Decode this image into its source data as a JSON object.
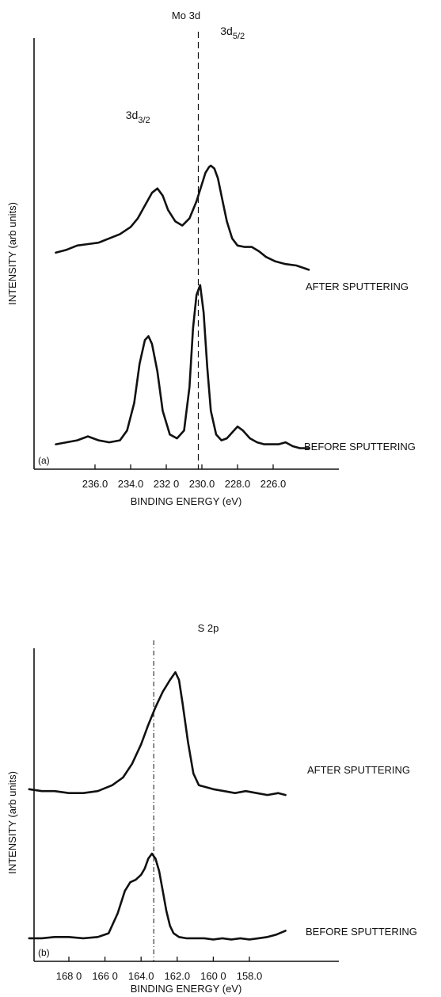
{
  "chart_data": [
    {
      "type": "line",
      "title": "Mo 3d",
      "panel_label": "(a)",
      "xlabel": "BINDING ENERGY (eV)",
      "ylabel": "INTENSITY (arb units)",
      "x_reversed": true,
      "xlim": [
        238.2,
        224.0
      ],
      "xticks": [
        236.0,
        234.0,
        232.0,
        230.0,
        228.0,
        226.0
      ],
      "xtick_labels": [
        "236.0",
        "234.0",
        "232 0",
        "230.0",
        "228.0",
        "226.0"
      ],
      "ylim": [
        0,
        100
      ],
      "reference_line_x": 230.2,
      "annotations": [
        {
          "text": "3d",
          "sub": "3/2",
          "x": 232.5
        },
        {
          "text": "3d",
          "sub": "5/2",
          "x": 229.5
        }
      ],
      "series": [
        {
          "name": "AFTER SPUTTERING",
          "x": [
            238.2,
            237.6,
            237.0,
            236.4,
            235.8,
            235.2,
            234.6,
            234.0,
            233.6,
            233.2,
            232.8,
            232.5,
            232.2,
            231.9,
            231.5,
            231.1,
            230.7,
            230.3,
            230.0,
            229.8,
            229.6,
            229.5,
            229.3,
            229.1,
            228.9,
            228.6,
            228.3,
            228.0,
            227.6,
            227.2,
            226.8,
            226.4,
            225.9,
            225.3,
            224.7,
            224.0
          ],
          "y": [
            44,
            46,
            49,
            50,
            51,
            54,
            57,
            62,
            68,
            77,
            86,
            89,
            84,
            74,
            66,
            63,
            68,
            80,
            92,
            100,
            104,
            105,
            103,
            96,
            84,
            66,
            54,
            49,
            48,
            48,
            45,
            41,
            38,
            36,
            35,
            32
          ]
        },
        {
          "name": "BEFORE SPUTTERING",
          "x": [
            238.2,
            237.6,
            237.0,
            236.4,
            235.8,
            235.2,
            234.6,
            234.2,
            233.8,
            233.5,
            233.2,
            233.0,
            232.8,
            232.5,
            232.2,
            231.8,
            231.4,
            231.0,
            230.7,
            230.5,
            230.3,
            230.1,
            229.9,
            229.7,
            229.5,
            229.2,
            228.9,
            228.6,
            228.3,
            228.0,
            227.7,
            227.3,
            226.9,
            226.5,
            226.1,
            225.7,
            225.3,
            224.9,
            224.5,
            224.0
          ],
          "y": [
            3,
            4,
            5,
            7,
            5,
            4,
            5,
            10,
            24,
            44,
            56,
            58,
            54,
            40,
            20,
            8,
            6,
            10,
            32,
            62,
            79,
            84,
            70,
            42,
            20,
            8,
            5,
            6,
            9,
            12,
            10,
            6,
            4,
            3,
            3,
            3,
            4,
            2,
            1,
            1
          ]
        }
      ],
      "series_label_text": [
        "AFTER SPUTTERING",
        "BEFORE SPUTTERING"
      ]
    },
    {
      "type": "line",
      "title": "S 2p",
      "panel_label": "(b)",
      "xlabel": "BINDING ENERGY (eV)",
      "ylabel": "INTENSITY (arb units)",
      "x_reversed": true,
      "xlim": [
        170.2,
        156.0
      ],
      "xticks": [
        168.0,
        166.0,
        164.0,
        162.0,
        160.0,
        158.0
      ],
      "xtick_labels": [
        "168 0",
        "166 0",
        "164.0",
        "162.0",
        "160 0",
        "158.0"
      ],
      "ylim": [
        0,
        100
      ],
      "reference_line_x": 163.3,
      "series": [
        {
          "name": "AFTER SPUTTERING",
          "x": [
            170.2,
            169.5,
            168.8,
            168.0,
            167.2,
            166.4,
            165.6,
            165.0,
            164.5,
            164.0,
            163.6,
            163.2,
            162.8,
            162.4,
            162.1,
            161.9,
            161.7,
            161.4,
            161.1,
            160.8,
            160.4,
            160.0,
            159.4,
            158.8,
            158.2,
            157.6,
            157.0,
            156.4,
            156.0
          ],
          "y": [
            44,
            43,
            43,
            42,
            42,
            43,
            46,
            50,
            57,
            67,
            77,
            86,
            94,
            100,
            104,
            100,
            88,
            68,
            52,
            46,
            45,
            44,
            43,
            42,
            43,
            42,
            41,
            42,
            41
          ]
        },
        {
          "name": "BEFORE SPUTTERING",
          "x": [
            170.2,
            169.5,
            168.8,
            168.0,
            167.2,
            166.4,
            165.8,
            165.3,
            164.9,
            164.6,
            164.3,
            164.0,
            163.8,
            163.6,
            163.4,
            163.2,
            163.0,
            162.8,
            162.6,
            162.4,
            162.2,
            161.9,
            161.5,
            161.0,
            160.5,
            160.0,
            159.5,
            159.0,
            158.5,
            158.0,
            157.5,
            157.0,
            156.5,
            156.0
          ],
          "y": [
            2,
            2,
            3,
            3,
            2,
            3,
            6,
            22,
            40,
            47,
            49,
            53,
            58,
            66,
            70,
            66,
            56,
            40,
            24,
            12,
            6,
            3,
            2,
            2,
            2,
            1,
            2,
            1,
            2,
            1,
            2,
            3,
            5,
            8
          ]
        }
      ],
      "series_label_text": [
        "AFTER SPUTTERING",
        "BEFORE SPUTTERING"
      ]
    }
  ]
}
